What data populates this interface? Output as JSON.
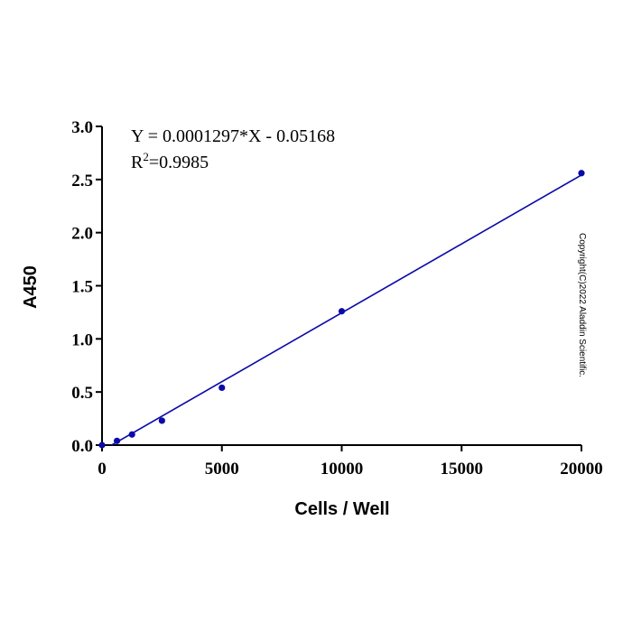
{
  "chart_data": {
    "type": "scatter",
    "xlabel": "Cells / Well",
    "ylabel": "A450",
    "xlim": [
      0,
      20000
    ],
    "ylim": [
      0,
      3.0
    ],
    "xticks": [
      "0",
      "5000",
      "10000",
      "15000",
      "20000"
    ],
    "yticks": [
      "0.0",
      "0.5",
      "1.0",
      "1.5",
      "2.0",
      "2.5",
      "3.0"
    ],
    "points": [
      [
        0,
        0
      ],
      [
        625,
        0.04
      ],
      [
        1250,
        0.1
      ],
      [
        2500,
        0.23
      ],
      [
        5000,
        0.54
      ],
      [
        10000,
        1.26
      ],
      [
        20000,
        2.56
      ]
    ],
    "fit": {
      "slope": 0.0001297,
      "intercept": -0.05168
    },
    "equation": "Y = 0.0001297*X - 0.05168",
    "r2_prefix": "R",
    "r2_sup": "2",
    "r2_value": "=0.9985",
    "copyright": "Copyright(C)2022 Aladdin Scientific.",
    "color": "#0a0aa8",
    "grid": false
  }
}
